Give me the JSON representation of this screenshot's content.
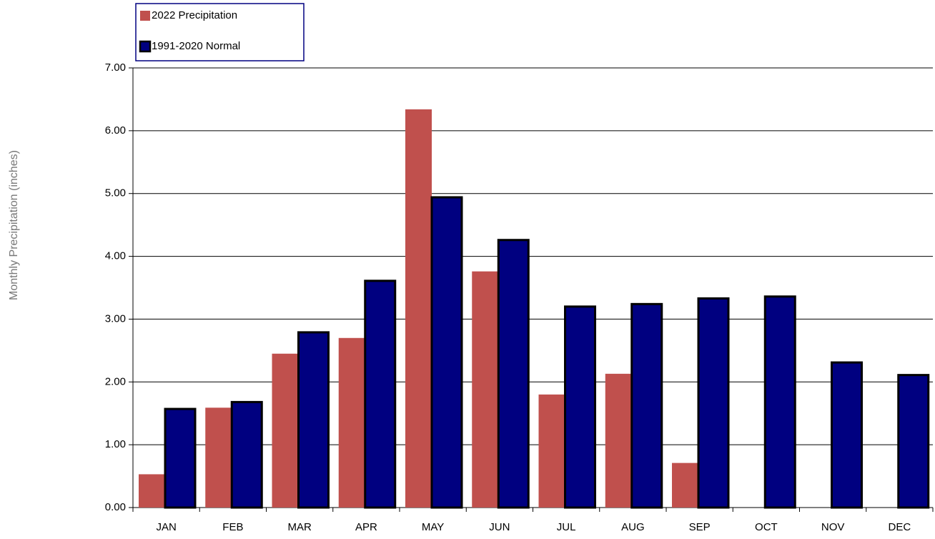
{
  "chart_data": {
    "type": "bar",
    "y_label": "Monthly Precipitation (inches)",
    "categories": [
      "JAN",
      "FEB",
      "MAR",
      "APR",
      "MAY",
      "JUN",
      "JUL",
      "AUG",
      "SEP",
      "OCT",
      "NOV",
      "DEC"
    ],
    "series": [
      {
        "name": "2022 Precipitation",
        "color": "#c0504d",
        "values": [
          0.53,
          1.59,
          2.45,
          2.7,
          6.34,
          3.76,
          1.8,
          2.13,
          0.71,
          null,
          null,
          null
        ]
      },
      {
        "name": "1991-2020 Normal",
        "color": "#000080",
        "values": [
          1.57,
          1.68,
          2.79,
          3.61,
          4.94,
          4.26,
          3.2,
          3.24,
          3.33,
          3.36,
          2.31,
          2.11
        ]
      }
    ],
    "ylim": [
      0,
      7
    ],
    "yticks": [
      {
        "value": 0,
        "label": "0.00"
      },
      {
        "value": 1,
        "label": "1.00"
      },
      {
        "value": 2,
        "label": "2.00"
      },
      {
        "value": 3,
        "label": "3.00"
      },
      {
        "value": 4,
        "label": "4.00"
      },
      {
        "value": 5,
        "label": "5.00"
      },
      {
        "value": 6,
        "label": "6.00"
      },
      {
        "value": 7,
        "label": "7.00"
      }
    ],
    "grid": true
  }
}
